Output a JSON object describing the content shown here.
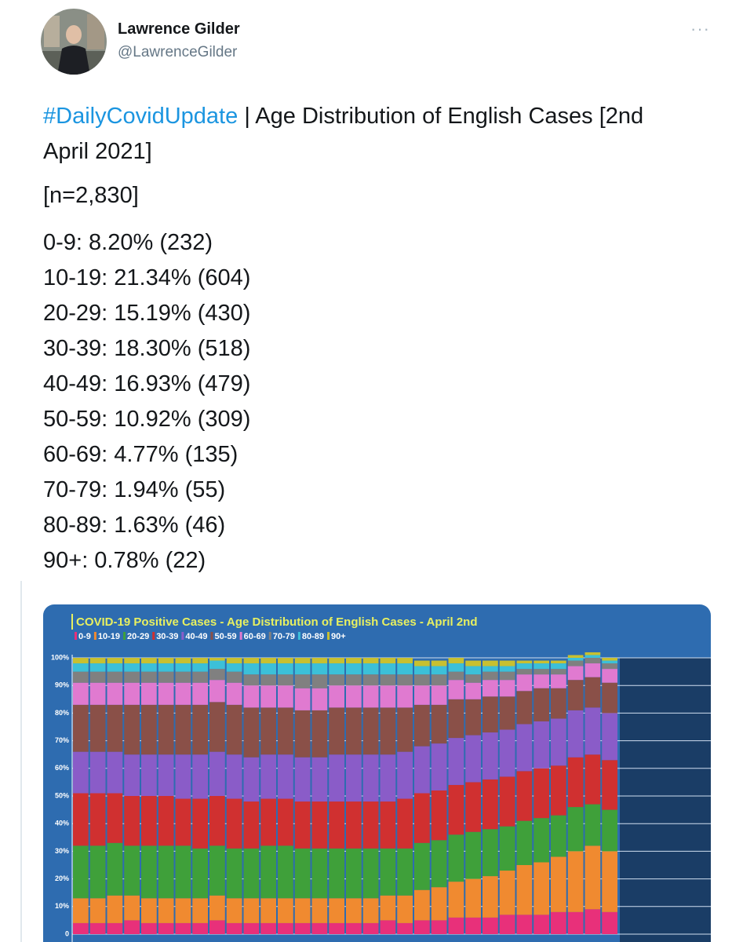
{
  "tweet": {
    "name": "Lawrence Gilder",
    "handle": "@LawrenceGilder",
    "hashtag": "#DailyCovidUpdate",
    "headline": "| Age Distribution of English Cases [2nd",
    "headline_cont": "April 2021]",
    "sample": "[n=2,830]",
    "lines": [
      "0-9: 8.20% (232)",
      "10-19: 21.34% (604)",
      "20-29: 15.19% (430)",
      "30-39: 18.30% (518)",
      "40-49: 16.93% (479)",
      "50-59: 10.92% (309)",
      "60-69: 4.77% (135)",
      "70-79: 1.94% (55)",
      "80-89: 1.63% (46)",
      "90+: 0.78% (22)"
    ]
  },
  "chart_data": {
    "type": "stacked_bar",
    "title": "COVID-19 Positive Cases - Age Distribution of English Cases - April 2nd",
    "ylim": [
      0,
      100
    ],
    "yticks": [
      {
        "value": 0,
        "label": "0"
      },
      {
        "value": 10,
        "label": "10%"
      },
      {
        "value": 20,
        "label": "20%"
      },
      {
        "value": 30,
        "label": "30%"
      },
      {
        "value": 40,
        "label": "40%"
      },
      {
        "value": 50,
        "label": "50%"
      },
      {
        "value": 60,
        "label": "60%"
      },
      {
        "value": 70,
        "label": "70%"
      },
      {
        "value": 80,
        "label": "80%"
      },
      {
        "value": 90,
        "label": "90%"
      },
      {
        "value": 100,
        "label": "100%"
      }
    ],
    "grid": true,
    "series": [
      {
        "name": "0-9",
        "color": "#e8307a",
        "values": [
          4,
          4,
          4,
          5,
          4,
          4,
          4,
          4,
          5,
          4,
          4,
          4,
          4,
          4,
          4,
          4,
          4,
          4,
          5,
          4,
          5,
          5,
          6,
          6,
          6,
          7,
          7,
          7,
          8,
          8,
          9,
          8
        ]
      },
      {
        "name": "10-19",
        "color": "#f08a30",
        "values": [
          9,
          9,
          10,
          9,
          9,
          9,
          9,
          9,
          9,
          9,
          9,
          9,
          9,
          9,
          9,
          9,
          9,
          9,
          9,
          10,
          11,
          12,
          13,
          14,
          15,
          16,
          18,
          19,
          20,
          22,
          23,
          22
        ]
      },
      {
        "name": "20-29",
        "color": "#3fa03a",
        "values": [
          19,
          19,
          19,
          18,
          19,
          19,
          19,
          18,
          18,
          18,
          18,
          19,
          19,
          18,
          18,
          18,
          18,
          18,
          17,
          17,
          17,
          17,
          17,
          17,
          17,
          16,
          16,
          16,
          15,
          16,
          15,
          15
        ]
      },
      {
        "name": "30-39",
        "color": "#d03030",
        "values": [
          19,
          19,
          18,
          18,
          18,
          18,
          17,
          18,
          18,
          18,
          17,
          17,
          17,
          17,
          17,
          17,
          17,
          17,
          17,
          18,
          18,
          18,
          18,
          18,
          18,
          18,
          18,
          18,
          18,
          18,
          18,
          18
        ]
      },
      {
        "name": "40-49",
        "color": "#8a5cc8",
        "values": [
          15,
          15,
          15,
          15,
          15,
          15,
          16,
          16,
          16,
          16,
          16,
          16,
          16,
          16,
          16,
          17,
          17,
          17,
          17,
          17,
          17,
          17,
          17,
          17,
          17,
          17,
          17,
          17,
          17,
          17,
          17,
          17
        ]
      },
      {
        "name": "50-59",
        "color": "#8a5048",
        "values": [
          17,
          17,
          17,
          18,
          18,
          18,
          18,
          18,
          18,
          18,
          18,
          17,
          17,
          17,
          17,
          17,
          17,
          17,
          17,
          16,
          15,
          14,
          14,
          13,
          13,
          12,
          12,
          12,
          11,
          11,
          11,
          11
        ]
      },
      {
        "name": "60-69",
        "color": "#e07ad0",
        "values": [
          8,
          8,
          8,
          8,
          8,
          8,
          8,
          8,
          8,
          8,
          8,
          8,
          8,
          8,
          8,
          8,
          8,
          8,
          8,
          8,
          7,
          7,
          7,
          6,
          6,
          6,
          6,
          5,
          5,
          5,
          5,
          5
        ]
      },
      {
        "name": "70-79",
        "color": "#808080",
        "values": [
          4,
          4,
          4,
          4,
          4,
          4,
          4,
          4,
          4,
          4,
          4,
          4,
          4,
          5,
          5,
          4,
          4,
          4,
          4,
          4,
          4,
          4,
          3,
          3,
          3,
          3,
          2,
          2,
          2,
          2,
          2,
          2
        ]
      },
      {
        "name": "80-89",
        "color": "#3cc0d8",
        "values": [
          3,
          3,
          3,
          3,
          3,
          3,
          3,
          3,
          3,
          3,
          4,
          4,
          4,
          4,
          4,
          4,
          4,
          4,
          4,
          4,
          3,
          3,
          3,
          3,
          2,
          2,
          2,
          2,
          2,
          1,
          1,
          1
        ]
      },
      {
        "name": "90+",
        "color": "#c8c030",
        "values": [
          2,
          2,
          2,
          2,
          2,
          2,
          2,
          2,
          1,
          2,
          2,
          2,
          2,
          2,
          2,
          2,
          2,
          2,
          2,
          2,
          2,
          2,
          2,
          2,
          2,
          2,
          1,
          1,
          1,
          1,
          1,
          1
        ]
      }
    ]
  }
}
